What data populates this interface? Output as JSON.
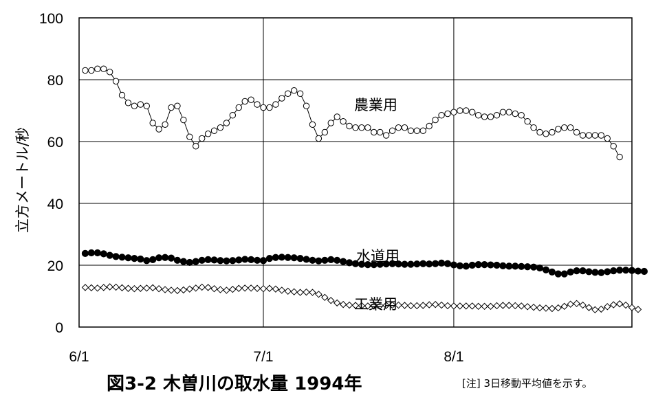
{
  "chart_data": {
    "type": "line",
    "title": "図3-2  木曽川の取水量  1994年",
    "note": "[注] 3日移動平均値を示す。",
    "ylabel": "立方メートル/秒",
    "xlabel": "",
    "ylim": [
      0,
      100
    ],
    "yticks": [
      "0",
      "20",
      "40",
      "60",
      "80",
      "100"
    ],
    "xticks": [
      {
        "label": "6/1",
        "day": 1
      },
      {
        "label": "7/1",
        "day": 31
      },
      {
        "label": "8/1",
        "day": 62
      }
    ],
    "xlim": [
      1,
      91
    ],
    "grid": true,
    "series": [
      {
        "name": "農業用",
        "marker": "open-circle",
        "x_start_day": 2,
        "values": [
          83,
          83,
          83.5,
          83.5,
          82.5,
          79.5,
          75,
          72.5,
          71.5,
          72,
          71.5,
          66,
          64,
          65.5,
          71,
          71.5,
          67,
          61.5,
          58.5,
          61,
          62.5,
          63.5,
          64.5,
          66,
          68.5,
          71,
          73,
          73.5,
          72,
          71,
          71,
          72,
          74,
          75.5,
          76.5,
          75.5,
          71.5,
          65.5,
          61,
          63,
          66,
          68,
          66.5,
          65,
          64.5,
          64.5,
          64.5,
          63,
          63,
          62,
          63.5,
          64.5,
          64.5,
          63.5,
          63.5,
          63.5,
          65,
          67,
          68.5,
          69,
          69.5,
          70,
          70,
          69.5,
          68.5,
          68,
          68,
          68.5,
          69.5,
          69.5,
          69,
          68.5,
          66.5,
          64.5,
          63,
          62.5,
          63,
          64,
          64.5,
          64.5,
          63,
          62,
          62,
          62,
          62,
          61,
          58.5,
          55
        ]
      },
      {
        "name": "水道用",
        "marker": "filled-circle",
        "x_start_day": 2,
        "values": [
          23.8,
          24,
          24,
          23.7,
          23.2,
          22.8,
          22.6,
          22.4,
          22.2,
          22,
          21.5,
          21.8,
          22.4,
          22.5,
          22.3,
          21.6,
          21.2,
          20.9,
          21.2,
          21.6,
          21.8,
          21.7,
          21.5,
          21.4,
          21.5,
          21.7,
          21.9,
          21.8,
          21.6,
          21.5,
          22.2,
          22.5,
          22.6,
          22.5,
          22.4,
          22.2,
          21.9,
          21.6,
          21.4,
          21.6,
          21.8,
          21.6,
          21.2,
          20.8,
          20.5,
          20.3,
          20.2,
          20.2,
          20.3,
          20.4,
          20.5,
          20.4,
          20.3,
          20.3,
          20.4,
          20.5,
          20.4,
          20.5,
          20.7,
          20.5,
          20.1,
          19.8,
          19.7,
          20,
          20.2,
          20.2,
          20.1,
          20,
          19.8,
          19.7,
          19.7,
          19.6,
          19.5,
          19.4,
          19.1,
          18.5,
          17.8,
          17.2,
          17.2,
          17.8,
          18.2,
          18.2,
          17.9,
          17.7,
          17.6,
          17.9,
          18.2,
          18.4,
          18.4,
          18.3,
          18.1,
          18
        ]
      },
      {
        "name": "工業用",
        "marker": "open-diamond",
        "x_start_day": 2,
        "values": [
          12.8,
          12.7,
          12.6,
          12.8,
          13,
          12.9,
          12.7,
          12.5,
          12.4,
          12.5,
          12.6,
          12.7,
          12.4,
          12.1,
          11.9,
          11.8,
          12,
          12.3,
          12.6,
          12.9,
          12.8,
          12.4,
          12.1,
          11.9,
          12.2,
          12.5,
          12.6,
          12.6,
          12.5,
          12.4,
          12.5,
          12.3,
          11.9,
          11.6,
          11.4,
          11.2,
          11.3,
          11.2,
          10.6,
          9.6,
          8.6,
          7.8,
          7.3,
          7.1,
          7,
          6.9,
          6.8,
          6.8,
          6.9,
          7,
          7.1,
          7.1,
          7,
          6.9,
          6.9,
          7,
          7.2,
          7.3,
          7.1,
          6.9,
          6.8,
          6.8,
          6.8,
          6.8,
          6.7,
          6.7,
          6.7,
          6.9,
          7,
          7,
          6.9,
          6.8,
          6.6,
          6.4,
          6.2,
          6.1,
          6,
          6.2,
          6.7,
          7.4,
          7.6,
          7.1,
          6.3,
          5.6,
          5.8,
          6.6,
          7.2,
          7.5,
          7.1,
          6.3,
          5.7
        ]
      }
    ],
    "series_labels": [
      "農業用",
      "水道用",
      "工業用"
    ]
  }
}
